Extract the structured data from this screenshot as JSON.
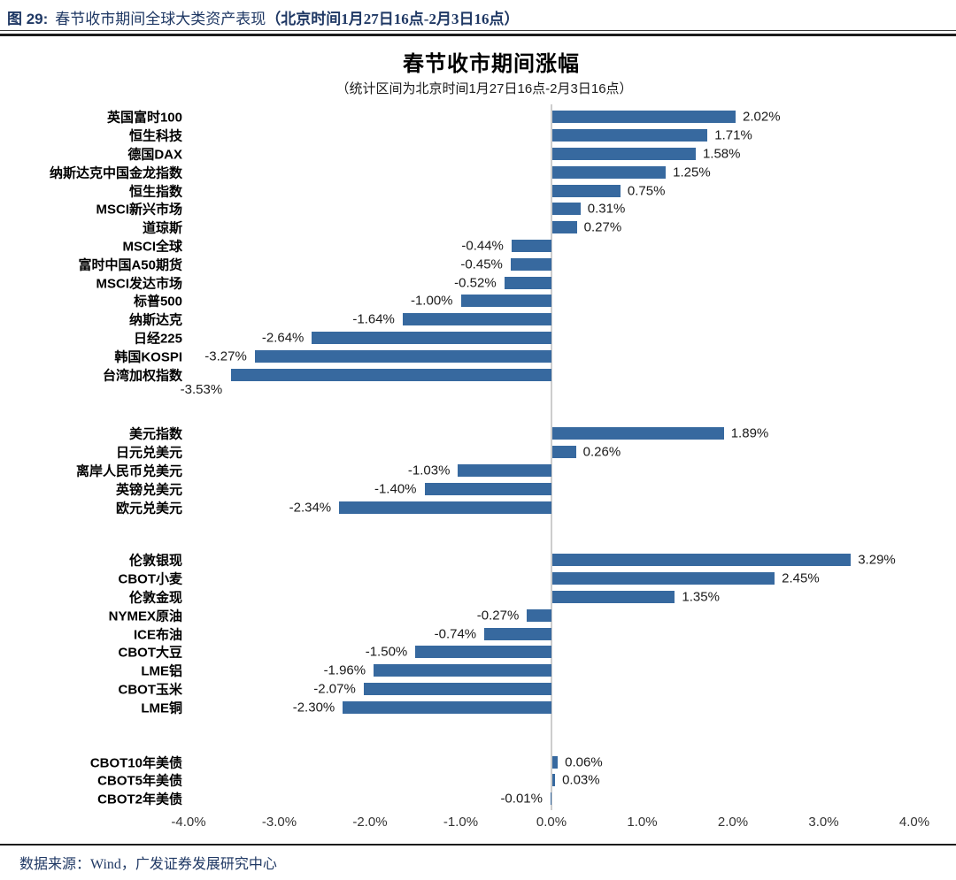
{
  "header": {
    "figure_label": "图 29:",
    "title": "春节收市期间全球大类资产表现",
    "title_bold": "（北京时间1月27日16点-2月3日16点）"
  },
  "footer": {
    "source": "数据来源：Wind，广发证券发展研究中心"
  },
  "chart_data": {
    "type": "bar",
    "orientation": "horizontal",
    "title": "春节收市期间涨幅",
    "subtitle": "（统计区间为北京时间1月27日16点-2月3日16点）",
    "xlabel": "",
    "ylabel": "",
    "xlim": [
      -4.0,
      4.0
    ],
    "grid": false,
    "legend": false,
    "bar_color": "#37699F",
    "value_label_suffix": "%",
    "axis_ticks": [
      "-4.0%",
      "-3.0%",
      "-2.0%",
      "-1.0%",
      "0.0%",
      "1.0%",
      "2.0%",
      "3.0%",
      "4.0%"
    ],
    "groups": [
      {
        "name": "equity-indices",
        "items": [
          {
            "label": "英国富时100",
            "value": 2.02
          },
          {
            "label": "恒生科技",
            "value": 1.71
          },
          {
            "label": "德国DAX",
            "value": 1.58
          },
          {
            "label": "纳斯达克中国金龙指数",
            "value": 1.25
          },
          {
            "label": "恒生指数",
            "value": 0.75
          },
          {
            "label": "MSCI新兴市场",
            "value": 0.31
          },
          {
            "label": "道琼斯",
            "value": 0.27
          },
          {
            "label": "MSCI全球",
            "value": -0.44
          },
          {
            "label": "富时中国A50期货",
            "value": -0.45
          },
          {
            "label": "MSCI发达市场",
            "value": -0.52
          },
          {
            "label": "标普500",
            "value": -1.0
          },
          {
            "label": "纳斯达克",
            "value": -1.64
          },
          {
            "label": "日经225",
            "value": -2.64
          },
          {
            "label": "韩国KOSPI",
            "value": -3.27
          },
          {
            "label": "台湾加权指数",
            "value": -3.53,
            "label_below": true
          }
        ]
      },
      {
        "name": "currencies",
        "items": [
          {
            "label": "美元指数",
            "value": 1.89
          },
          {
            "label": "日元兑美元",
            "value": 0.26
          },
          {
            "label": "离岸人民币兑美元",
            "value": -1.03
          },
          {
            "label": "英镑兑美元",
            "value": -1.4
          },
          {
            "label": "欧元兑美元",
            "value": -2.34
          }
        ]
      },
      {
        "name": "commodities",
        "items": [
          {
            "label": "伦敦银现",
            "value": 3.29
          },
          {
            "label": "CBOT小麦",
            "value": 2.45
          },
          {
            "label": "伦敦金现",
            "value": 1.35
          },
          {
            "label": "NYMEX原油",
            "value": -0.27
          },
          {
            "label": "ICE布油",
            "value": -0.74
          },
          {
            "label": "CBOT大豆",
            "value": -1.5
          },
          {
            "label": "LME铝",
            "value": -1.96
          },
          {
            "label": "CBOT玉米",
            "value": -2.07
          },
          {
            "label": "LME铜",
            "value": -2.3
          }
        ]
      },
      {
        "name": "bonds",
        "items": [
          {
            "label": "CBOT10年美债",
            "value": 0.06
          },
          {
            "label": "CBOT5年美债",
            "value": 0.03
          },
          {
            "label": "CBOT2年美债",
            "value": -0.01
          }
        ]
      }
    ]
  }
}
